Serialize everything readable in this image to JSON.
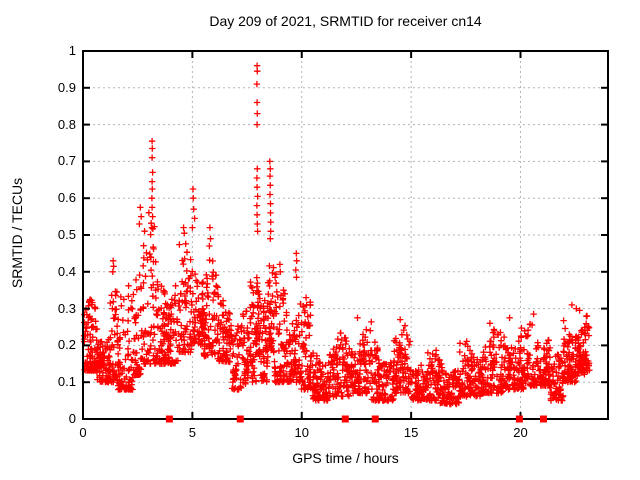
{
  "chart_data": {
    "type": "scatter",
    "title": "Day 209 of 2021, SRMTID for receiver cn14",
    "xlabel": "GPS time / hours",
    "ylabel": "SRMTID / TECUs",
    "xlim": [
      0,
      24
    ],
    "ylim": [
      0,
      1
    ],
    "grid": "dotted",
    "legend": "none",
    "marker": {
      "shape": "plus",
      "size": 7
    },
    "colors": {
      "points": "#ff0000",
      "grid": "#b3b3b3",
      "border": "#000000",
      "background": "#ffffff"
    },
    "xticks": [
      {
        "v": 0,
        "label": "0"
      },
      {
        "v": 5,
        "label": "5"
      },
      {
        "v": 10,
        "label": "10"
      },
      {
        "v": 15,
        "label": "15"
      },
      {
        "v": 20,
        "label": "20"
      }
    ],
    "yticks": [
      {
        "v": 0.0,
        "label": "0"
      },
      {
        "v": 0.1,
        "label": "0.1"
      },
      {
        "v": 0.2,
        "label": "0.2"
      },
      {
        "v": 0.3,
        "label": "0.3"
      },
      {
        "v": 0.4,
        "label": "0.4"
      },
      {
        "v": 0.5,
        "label": "0.5"
      },
      {
        "v": 0.6,
        "label": "0.6"
      },
      {
        "v": 0.7,
        "label": "0.7"
      },
      {
        "v": 0.8,
        "label": "0.8"
      },
      {
        "v": 0.9,
        "label": "0.9"
      },
      {
        "v": 1.0,
        "label": "1"
      }
    ],
    "axis_marker_squares_x": [
      3.95,
      7.19,
      11.99,
      13.36,
      19.95,
      21.05
    ],
    "spike_points": [
      [
        1.36,
        0.4
      ],
      [
        1.38,
        0.43
      ],
      [
        1.4,
        0.415
      ],
      [
        2.58,
        0.53
      ],
      [
        2.62,
        0.575
      ],
      [
        2.66,
        0.55
      ],
      [
        3.15,
        0.6
      ],
      [
        3.15,
        0.52
      ],
      [
        3.16,
        0.755
      ],
      [
        3.16,
        0.71
      ],
      [
        3.16,
        0.645
      ],
      [
        3.16,
        0.575
      ],
      [
        3.17,
        0.735
      ],
      [
        3.17,
        0.625
      ],
      [
        3.18,
        0.67
      ],
      [
        3.18,
        0.55
      ],
      [
        4.6,
        0.52
      ],
      [
        4.63,
        0.505
      ],
      [
        5.0,
        0.52
      ],
      [
        5.03,
        0.625
      ],
      [
        5.04,
        0.6
      ],
      [
        5.06,
        0.57
      ],
      [
        5.1,
        0.545
      ],
      [
        5.78,
        0.47
      ],
      [
        5.8,
        0.52
      ],
      [
        5.83,
        0.49
      ],
      [
        7.95,
        0.91
      ],
      [
        7.95,
        0.655
      ],
      [
        7.95,
        0.58
      ],
      [
        7.96,
        0.96
      ],
      [
        7.96,
        0.86
      ],
      [
        7.96,
        0.8
      ],
      [
        7.96,
        0.63
      ],
      [
        7.96,
        0.555
      ],
      [
        7.97,
        0.945
      ],
      [
        7.97,
        0.83
      ],
      [
        7.97,
        0.68
      ],
      [
        7.97,
        0.53
      ],
      [
        7.98,
        0.605
      ],
      [
        7.98,
        0.51
      ],
      [
        8.54,
        0.7
      ],
      [
        8.55,
        0.66
      ],
      [
        8.55,
        0.61
      ],
      [
        8.56,
        0.68
      ],
      [
        8.56,
        0.635
      ],
      [
        8.56,
        0.49
      ],
      [
        8.57,
        0.585
      ],
      [
        8.57,
        0.56
      ],
      [
        8.58,
        0.535
      ],
      [
        8.58,
        0.51
      ],
      [
        9.0,
        0.42
      ],
      [
        9.02,
        0.4
      ],
      [
        9.73,
        0.405
      ],
      [
        9.75,
        0.45
      ],
      [
        9.76,
        0.385
      ],
      [
        9.77,
        0.43
      ],
      [
        10.2,
        0.33
      ],
      [
        10.22,
        0.31
      ],
      [
        12.55,
        0.275
      ],
      [
        14.5,
        0.27
      ],
      [
        18.6,
        0.26
      ],
      [
        19.5,
        0.275
      ],
      [
        20.6,
        0.285
      ],
      [
        22.35,
        0.31
      ],
      [
        22.55,
        0.3
      ],
      [
        22.7,
        0.295
      ]
    ],
    "density_clusters": [
      [
        0.05,
        0.6,
        85,
        0.13,
        0.33,
        1.8
      ],
      [
        0.6,
        1.2,
        85,
        0.1,
        0.28,
        1.6
      ],
      [
        1.2,
        1.6,
        55,
        0.1,
        0.42,
        2.0
      ],
      [
        1.6,
        2.3,
        85,
        0.08,
        0.45,
        2.4
      ],
      [
        2.3,
        2.75,
        55,
        0.12,
        0.57,
        2.2
      ],
      [
        2.75,
        3.3,
        60,
        0.15,
        0.6,
        2.2
      ],
      [
        3.3,
        3.8,
        65,
        0.15,
        0.48,
        1.8
      ],
      [
        3.8,
        4.35,
        65,
        0.15,
        0.42,
        1.6
      ],
      [
        4.35,
        4.95,
        65,
        0.18,
        0.5,
        1.8
      ],
      [
        4.95,
        5.5,
        65,
        0.2,
        0.5,
        1.7
      ],
      [
        5.5,
        6.1,
        65,
        0.17,
        0.46,
        1.6
      ],
      [
        6.1,
        6.8,
        75,
        0.15,
        0.38,
        1.5
      ],
      [
        6.8,
        7.6,
        85,
        0.08,
        0.3,
        1.4
      ],
      [
        7.6,
        7.93,
        40,
        0.1,
        0.4,
        1.6
      ],
      [
        7.93,
        8.12,
        35,
        0.17,
        0.5,
        1.5
      ],
      [
        8.12,
        8.45,
        45,
        0.1,
        0.45,
        1.6
      ],
      [
        8.45,
        8.72,
        35,
        0.18,
        0.48,
        1.6
      ],
      [
        8.72,
        9.35,
        75,
        0.1,
        0.4,
        1.7
      ],
      [
        9.35,
        9.95,
        70,
        0.1,
        0.38,
        1.8
      ],
      [
        9.95,
        10.45,
        65,
        0.08,
        0.33,
        1.8
      ],
      [
        10.45,
        11.2,
        85,
        0.05,
        0.22,
        1.5
      ],
      [
        11.2,
        12.2,
        105,
        0.06,
        0.26,
        1.6
      ],
      [
        12.2,
        13.2,
        105,
        0.07,
        0.27,
        1.7
      ],
      [
        13.2,
        14.2,
        105,
        0.05,
        0.22,
        1.6
      ],
      [
        14.2,
        15.0,
        95,
        0.07,
        0.26,
        1.7
      ],
      [
        15.0,
        16.2,
        115,
        0.05,
        0.2,
        1.5
      ],
      [
        16.2,
        17.2,
        105,
        0.04,
        0.18,
        1.4
      ],
      [
        17.2,
        18.2,
        105,
        0.06,
        0.22,
        1.6
      ],
      [
        18.2,
        19.2,
        105,
        0.07,
        0.25,
        1.6
      ],
      [
        19.2,
        20.2,
        105,
        0.08,
        0.27,
        1.6
      ],
      [
        20.2,
        21.35,
        115,
        0.09,
        0.28,
        1.6
      ],
      [
        21.35,
        21.95,
        65,
        0.05,
        0.18,
        1.5
      ],
      [
        21.95,
        22.6,
        85,
        0.1,
        0.3,
        1.8
      ],
      [
        22.6,
        23.15,
        80,
        0.12,
        0.29,
        1.3
      ]
    ]
  }
}
